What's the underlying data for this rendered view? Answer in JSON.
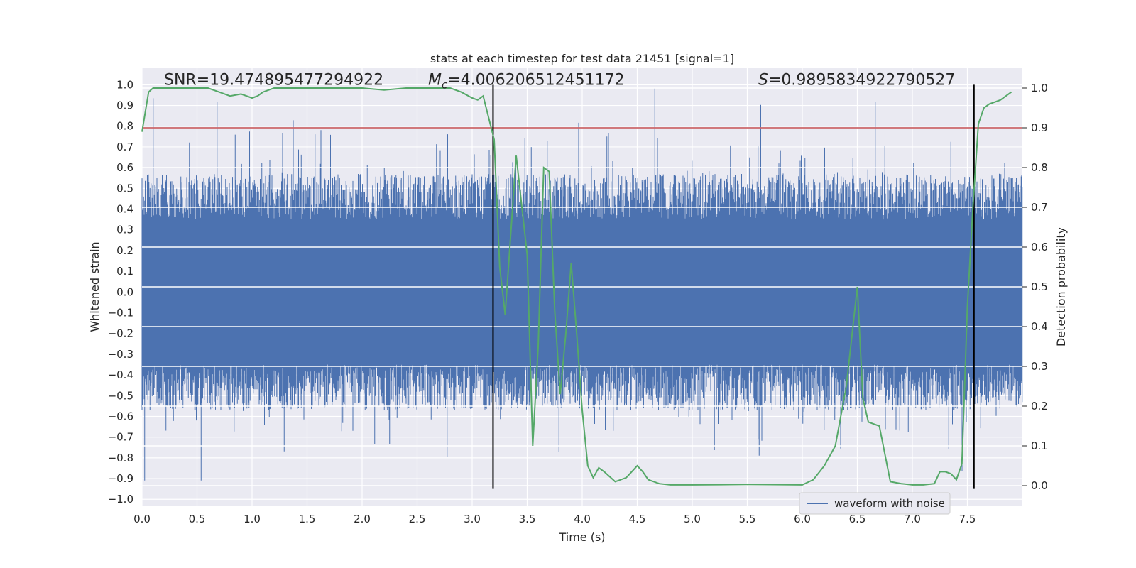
{
  "chart_data": {
    "type": "line",
    "title": "stats at each timestep for test data 21451 [signal=1]",
    "xlabel": "Time (s)",
    "ylabel": "Whitened strain",
    "y2label": "Detection probability",
    "xlim": [
      0,
      8.0
    ],
    "ylim": [
      -1.03,
      1.08
    ],
    "y2lim": [
      -0.05,
      1.05
    ],
    "grid": true,
    "xticks": [
      "0.0",
      "0.5",
      "1.0",
      "1.5",
      "2.0",
      "2.5",
      "3.0",
      "3.5",
      "4.0",
      "4.5",
      "5.0",
      "5.5",
      "6.0",
      "6.5",
      "7.0",
      "7.5"
    ],
    "yticks": [
      "1.0",
      "0.9",
      "0.8",
      "0.7",
      "0.6",
      "0.5",
      "0.4",
      "0.3",
      "0.2",
      "0.1",
      "0.0",
      "−0.1",
      "−0.2",
      "−0.3",
      "−0.4",
      "−0.5",
      "−0.6",
      "−0.7",
      "−0.8",
      "−0.9",
      "−1.0"
    ],
    "y2ticks": [
      "1.0",
      "0.9",
      "0.8",
      "0.7",
      "0.6",
      "0.5",
      "0.4",
      "0.3",
      "0.2",
      "0.1",
      "0.0"
    ],
    "annotations": [
      {
        "text": "SNR=19.474895477294922",
        "x": 0.2,
        "y": 1.02
      },
      {
        "text_prefix": "M",
        "text_sub": "c",
        "text_value": "=4.006206512451172",
        "x": 2.6,
        "y": 1.02
      },
      {
        "text_prefix": "S",
        "text_value": "=0.9895834922790527",
        "x": 5.6,
        "y": 1.02
      }
    ],
    "legend": {
      "entries": [
        "waveform with noise"
      ],
      "placement": "lower-right"
    },
    "series": [
      {
        "name": "waveform with noise",
        "axis": "left",
        "color": "#4c72b0",
        "kind": "noise-strain",
        "core_amplitude": 0.35,
        "peak_amplitude": 1.0
      },
      {
        "axis": "right",
        "color": "#55a868",
        "x": [
          0.0,
          0.06,
          0.1,
          0.2,
          0.4,
          0.6,
          0.7,
          0.8,
          0.9,
          0.95,
          1.0,
          1.05,
          1.1,
          1.2,
          1.4,
          1.6,
          1.8,
          2.0,
          2.2,
          2.4,
          2.6,
          2.8,
          2.9,
          3.0,
          3.05,
          3.1,
          3.15,
          3.2,
          3.25,
          3.3,
          3.4,
          3.5,
          3.55,
          3.6,
          3.65,
          3.7,
          3.75,
          3.8,
          3.85,
          3.9,
          3.95,
          4.0,
          4.05,
          4.1,
          4.15,
          4.2,
          4.3,
          4.4,
          4.5,
          4.55,
          4.6,
          4.7,
          4.8,
          5.0,
          5.5,
          6.0,
          6.1,
          6.2,
          6.3,
          6.4,
          6.5,
          6.55,
          6.6,
          6.7,
          6.8,
          6.9,
          7.0,
          7.1,
          7.2,
          7.25,
          7.3,
          7.35,
          7.4,
          7.45,
          7.5,
          7.55,
          7.6,
          7.65,
          7.7,
          7.8,
          7.9
        ],
        "values": [
          0.89,
          0.99,
          1.0,
          1.0,
          1.0,
          1.0,
          0.99,
          0.98,
          0.985,
          0.98,
          0.975,
          0.98,
          0.99,
          1.0,
          1.0,
          1.0,
          1.0,
          1.0,
          0.995,
          1.0,
          1.0,
          1.0,
          0.99,
          0.975,
          0.97,
          0.98,
          0.925,
          0.87,
          0.55,
          0.43,
          0.83,
          0.58,
          0.1,
          0.35,
          0.8,
          0.79,
          0.44,
          0.23,
          0.38,
          0.56,
          0.38,
          0.19,
          0.05,
          0.02,
          0.045,
          0.035,
          0.01,
          0.02,
          0.05,
          0.035,
          0.015,
          0.005,
          0.002,
          0.002,
          0.003,
          0.002,
          0.015,
          0.05,
          0.1,
          0.25,
          0.5,
          0.22,
          0.16,
          0.15,
          0.01,
          0.005,
          0.002,
          0.002,
          0.005,
          0.035,
          0.035,
          0.03,
          0.015,
          0.055,
          0.45,
          0.7,
          0.91,
          0.95,
          0.96,
          0.97,
          0.99
        ]
      }
    ],
    "reference_lines": [
      {
        "orientation": "horizontal",
        "axis": "right",
        "value": 0.9,
        "color": "#c44e52"
      },
      {
        "orientation": "vertical",
        "x": 3.19,
        "ymin": -0.95,
        "ymax": 1.0,
        "color": "#000000"
      },
      {
        "orientation": "vertical",
        "x": 7.56,
        "ymin": -0.95,
        "ymax": 1.0,
        "color": "#000000"
      }
    ]
  }
}
